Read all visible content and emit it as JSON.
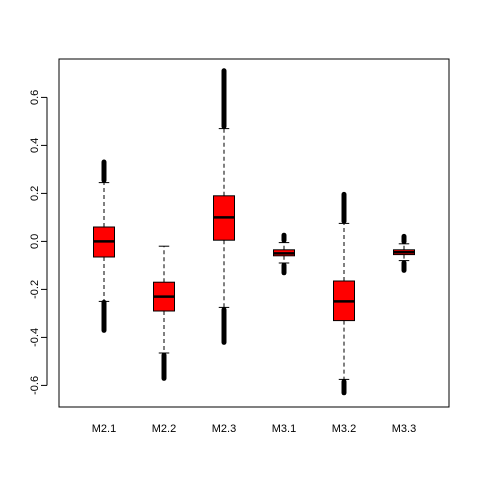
{
  "chart_data": {
    "type": "boxplot",
    "title": "",
    "xlabel": "",
    "ylabel": "",
    "ylim": [
      -0.69,
      0.76
    ],
    "yticks": [
      -0.6,
      -0.4,
      -0.2,
      0.0,
      0.2,
      0.4,
      0.6
    ],
    "ytick_labels": [
      "-0.6",
      "-0.4",
      "-0.2",
      "0.0",
      "0.2",
      "0.4",
      "0.6"
    ],
    "grid": false,
    "box_color": "#ff0000",
    "categories": [
      "M2.1",
      "M2.2",
      "M2.3",
      "M3.1",
      "M3.2",
      "M3.3"
    ],
    "boxes": [
      {
        "name": "M2.1",
        "whisker_low": -0.25,
        "q1": -0.065,
        "median": 0.0,
        "q3": 0.06,
        "whisker_high": 0.245,
        "outliers_low": [
          -0.375,
          -0.25
        ],
        "outliers_high": [
          0.25,
          0.335
        ]
      },
      {
        "name": "M2.2",
        "whisker_low": -0.465,
        "q1": -0.29,
        "median": -0.23,
        "q3": -0.17,
        "whisker_high": -0.02,
        "outliers_low": [
          -0.575,
          -0.47
        ],
        "outliers_high": []
      },
      {
        "name": "M2.3",
        "whisker_low": -0.275,
        "q1": 0.005,
        "median": 0.1,
        "q3": 0.19,
        "whisker_high": 0.47,
        "outliers_low": [
          -0.425,
          -0.28
        ],
        "outliers_high": [
          0.475,
          0.715
        ]
      },
      {
        "name": "M3.1",
        "whisker_low": -0.09,
        "q1": -0.06,
        "median": -0.05,
        "q3": -0.035,
        "whisker_high": -0.005,
        "outliers_low": [
          -0.135,
          -0.095
        ],
        "outliers_high": [
          0.0,
          0.03
        ]
      },
      {
        "name": "M3.2",
        "whisker_low": -0.575,
        "q1": -0.33,
        "median": -0.25,
        "q3": -0.165,
        "whisker_high": 0.075,
        "outliers_low": [
          -0.635,
          -0.58
        ],
        "outliers_high": [
          0.08,
          0.2
        ]
      },
      {
        "name": "M3.3",
        "whisker_low": -0.08,
        "q1": -0.055,
        "median": -0.045,
        "q3": -0.035,
        "whisker_high": -0.01,
        "outliers_low": [
          -0.125,
          -0.085
        ],
        "outliers_high": [
          -0.005,
          0.025
        ]
      }
    ]
  }
}
